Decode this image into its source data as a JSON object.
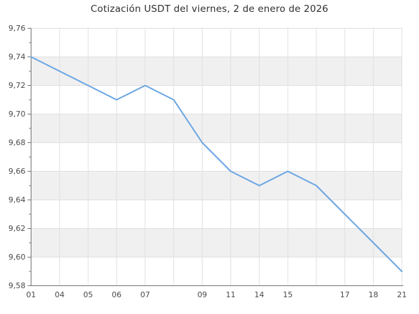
{
  "chart_data": {
    "type": "line",
    "title": "Cotización USDT del viernes, 2 de enero de 2026",
    "xlabel": "",
    "ylabel": "",
    "x_tick_labels": [
      "01",
      "04",
      "05",
      "06",
      "07",
      "",
      "09",
      "11",
      "14",
      "15",
      "",
      "17",
      "18",
      "21"
    ],
    "values": [
      9.74,
      9.73,
      9.72,
      9.71,
      9.72,
      9.71,
      9.68,
      9.66,
      9.65,
      9.66,
      9.65,
      9.63,
      9.61,
      9.59
    ],
    "y_ticks": [
      {
        "value": 9.58,
        "label": "9,58"
      },
      {
        "value": 9.6,
        "label": "9,60"
      },
      {
        "value": 9.62,
        "label": "9,62"
      },
      {
        "value": 9.64,
        "label": "9,64"
      },
      {
        "value": 9.66,
        "label": "9,66"
      },
      {
        "value": 9.68,
        "label": "9,68"
      },
      {
        "value": 9.7,
        "label": "9,70"
      },
      {
        "value": 9.72,
        "label": "9,72"
      },
      {
        "value": 9.74,
        "label": "9,74"
      },
      {
        "value": 9.76,
        "label": "9,76"
      }
    ],
    "ylim": [
      9.58,
      9.76
    ],
    "y_major_step": 0.02,
    "y_minor_step": 0.01,
    "grid": true,
    "alternating_bands": true,
    "legend": "none",
    "colors": {
      "line": "#6aa5e4",
      "band": "#f0f0f0",
      "grid": "#e0e0e0",
      "axis": "#737373",
      "tick_label": "#4a4a4a",
      "title": "#2e2e2e",
      "background": "#ffffff"
    }
  }
}
